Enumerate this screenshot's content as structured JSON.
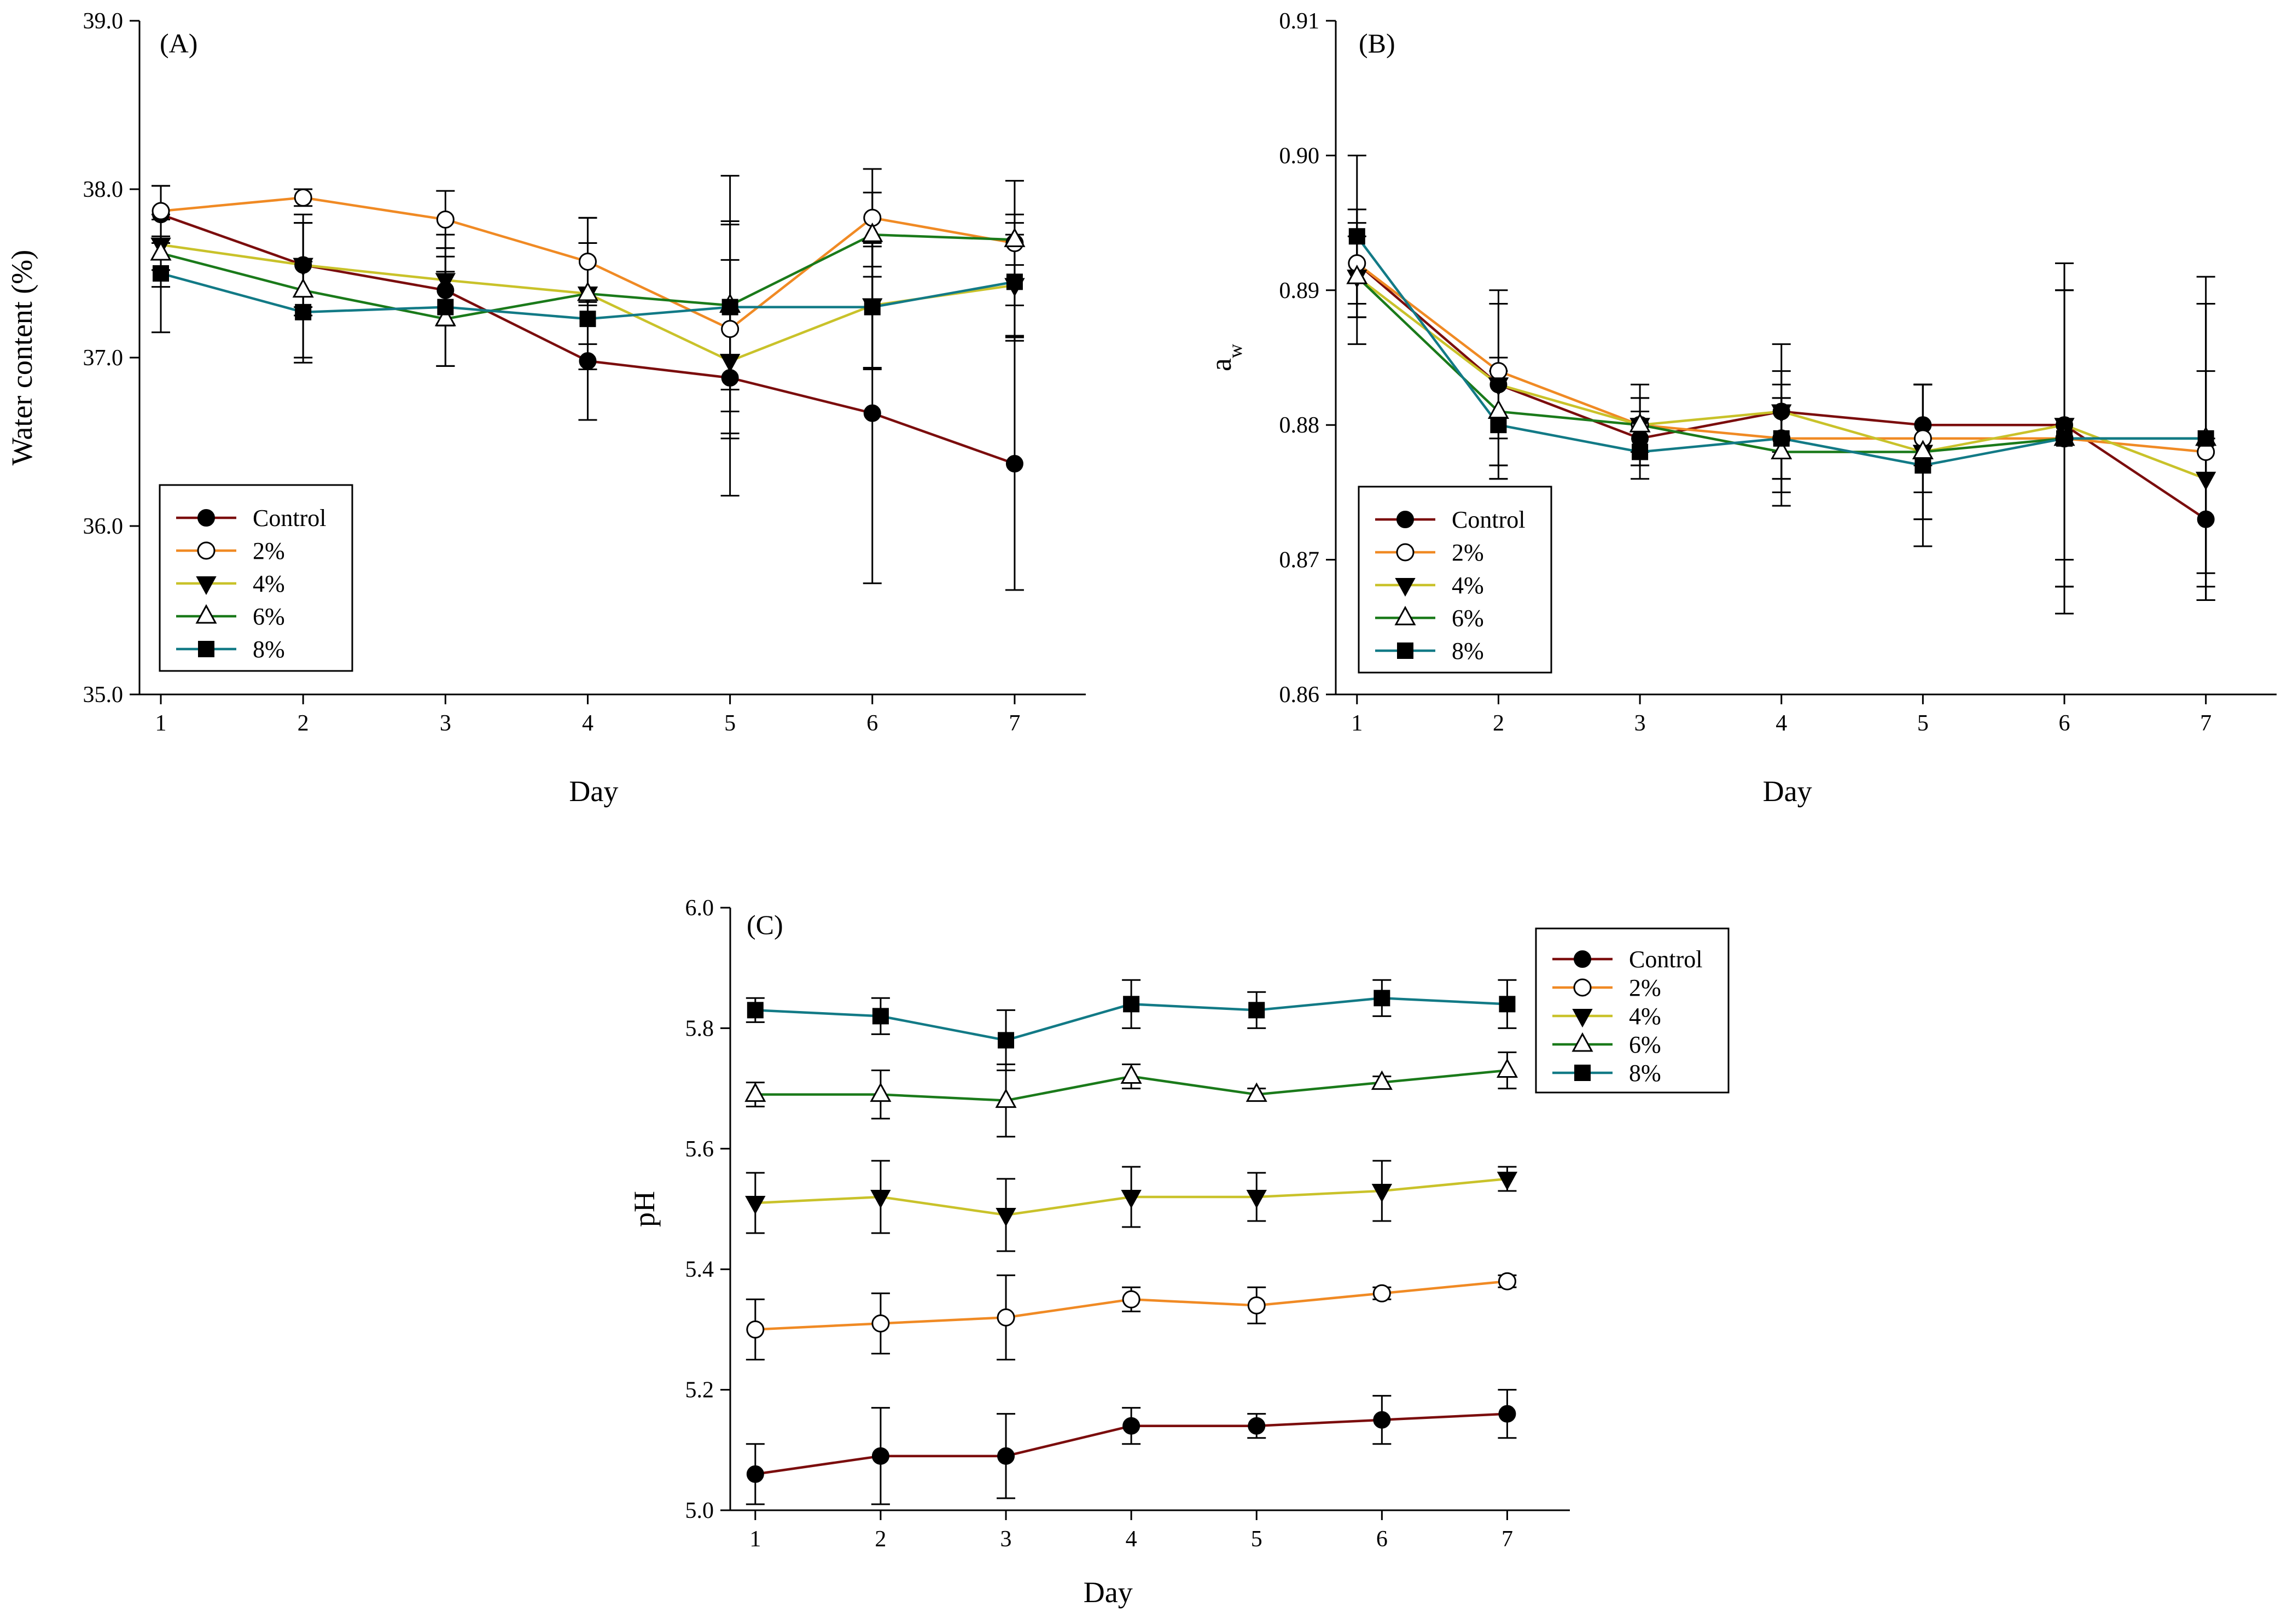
{
  "chart_data": [
    {
      "type": "line",
      "panel_label": "(A)",
      "xlabel": "Day",
      "ylabel": "Water content (%)",
      "xlim": [
        0.85,
        7.5
      ],
      "ylim": [
        35.0,
        39.0
      ],
      "x_ticks": [
        "1",
        "2",
        "3",
        "4",
        "5",
        "6",
        "7"
      ],
      "y_ticks": [
        "35.0",
        "36.0",
        "37.0",
        "38.0",
        "39.0"
      ],
      "legend_position": "bottom-left",
      "x": [
        1,
        2,
        3,
        4,
        5,
        6,
        7
      ],
      "series": [
        {
          "name": "Control",
          "color": "#7b0d0d",
          "marker": "filled-circle",
          "values": [
            37.85,
            37.55,
            37.4,
            36.98,
            36.88,
            36.67,
            36.37
          ],
          "errors": [
            0.17,
            0.25,
            0.2,
            0.35,
            0.7,
            1.01,
            0.75
          ]
        },
        {
          "name": "2%",
          "color": "#f08a24",
          "marker": "open-circle",
          "values": [
            37.87,
            37.95,
            37.82,
            37.57,
            37.17,
            37.83,
            37.68
          ],
          "errors": [
            0.15,
            0.05,
            0.17,
            0.26,
            0.62,
            0.29,
            0.37
          ]
        },
        {
          "name": "4%",
          "color": "#c9c22a",
          "marker": "filled-triangle-down",
          "values": [
            37.67,
            37.55,
            37.46,
            37.38,
            36.98,
            37.31,
            37.43
          ],
          "errors": [
            0.15,
            0.3,
            0.27,
            0.3,
            0.3,
            0.38,
            0.3
          ]
        },
        {
          "name": "6%",
          "color": "#1a7a1a",
          "marker": "open-triangle-up",
          "values": [
            37.62,
            37.4,
            37.23,
            37.38,
            37.31,
            37.73,
            37.7
          ],
          "errors": [
            0.2,
            0.4,
            0.28,
            0.45,
            0.5,
            0.25,
            0.15
          ]
        },
        {
          "name": "8%",
          "color": "#127a86",
          "marker": "filled-square",
          "values": [
            37.5,
            37.27,
            37.3,
            37.23,
            37.3,
            37.3,
            37.45
          ],
          "errors": [
            0.35,
            0.3,
            0.35,
            0.6,
            0.78,
            0.36,
            0.35
          ]
        }
      ]
    },
    {
      "type": "line",
      "panel_label": "(B)",
      "xlabel": "Day",
      "ylabel": "a",
      "ylabel_subscript": "w",
      "xlim": [
        0.85,
        7.5
      ],
      "ylim": [
        0.86,
        0.91
      ],
      "x_ticks": [
        "1",
        "2",
        "3",
        "4",
        "5",
        "6",
        "7"
      ],
      "y_ticks": [
        "0.86",
        "0.87",
        "0.88",
        "0.89",
        "0.90",
        "0.91"
      ],
      "legend_position": "bottom-left",
      "x": [
        1,
        2,
        3,
        4,
        5,
        6,
        7
      ],
      "series": [
        {
          "name": "Control",
          "color": "#7b0d0d",
          "marker": "filled-circle",
          "values": [
            0.892,
            0.883,
            0.879,
            0.881,
            0.88,
            0.88,
            0.873
          ],
          "errors": [
            0.004,
            0.006,
            0.002,
            0.003,
            0.003,
            0.012,
            0.006
          ]
        },
        {
          "name": "2%",
          "color": "#f08a24",
          "marker": "open-circle",
          "values": [
            0.892,
            0.884,
            0.88,
            0.879,
            0.879,
            0.879,
            0.878
          ],
          "errors": [
            0.003,
            0.005,
            0.002,
            0.004,
            0.004,
            0.011,
            0.011
          ]
        },
        {
          "name": "4%",
          "color": "#c9c22a",
          "marker": "filled-triangle-down",
          "values": [
            0.891,
            0.883,
            0.88,
            0.881,
            0.878,
            0.88,
            0.876
          ],
          "errors": [
            0.005,
            0.007,
            0.002,
            0.005,
            0.005,
            0.01,
            0.008
          ]
        },
        {
          "name": "6%",
          "color": "#1a7a1a",
          "marker": "open-triangle-up",
          "values": [
            0.891,
            0.881,
            0.88,
            0.878,
            0.878,
            0.879,
            0.879
          ],
          "errors": [
            0.003,
            0.004,
            0.003,
            0.004,
            0.005,
            0.011,
            0.01
          ]
        },
        {
          "name": "8%",
          "color": "#127a86",
          "marker": "filled-square",
          "values": [
            0.894,
            0.88,
            0.878,
            0.879,
            0.877,
            0.879,
            0.879
          ],
          "errors": [
            0.006,
            0.004,
            0.002,
            0.003,
            0.006,
            0.013,
            0.012
          ]
        }
      ]
    },
    {
      "type": "line",
      "panel_label": "(C)",
      "xlabel": "Day",
      "ylabel": "pH",
      "xlim": [
        0.8,
        7.5
      ],
      "ylim": [
        5.0,
        6.0
      ],
      "x_ticks": [
        "1",
        "2",
        "3",
        "4",
        "5",
        "6",
        "7"
      ],
      "y_ticks": [
        "5.0",
        "5.2",
        "5.4",
        "5.6",
        "5.8",
        "6.0"
      ],
      "legend_position": "top-right",
      "x": [
        1,
        2,
        3,
        4,
        5,
        6,
        7
      ],
      "series": [
        {
          "name": "Control",
          "color": "#7b0d0d",
          "marker": "filled-circle",
          "values": [
            5.06,
            5.09,
            5.09,
            5.14,
            5.14,
            5.15,
            5.16
          ],
          "errors": [
            0.05,
            0.08,
            0.07,
            0.03,
            0.02,
            0.04,
            0.04
          ]
        },
        {
          "name": "2%",
          "color": "#f08a24",
          "marker": "open-circle",
          "values": [
            5.3,
            5.31,
            5.32,
            5.35,
            5.34,
            5.36,
            5.38
          ],
          "errors": [
            0.05,
            0.05,
            0.07,
            0.02,
            0.03,
            0.01,
            0.01
          ]
        },
        {
          "name": "4%",
          "color": "#c9c22a",
          "marker": "filled-triangle-down",
          "values": [
            5.51,
            5.52,
            5.49,
            5.52,
            5.52,
            5.53,
            5.55
          ],
          "errors": [
            0.05,
            0.06,
            0.06,
            0.05,
            0.04,
            0.05,
            0.02
          ]
        },
        {
          "name": "6%",
          "color": "#1a7a1a",
          "marker": "open-triangle-up",
          "values": [
            5.69,
            5.69,
            5.68,
            5.72,
            5.69,
            5.71,
            5.73
          ],
          "errors": [
            0.02,
            0.04,
            0.06,
            0.02,
            0.01,
            0.01,
            0.03
          ]
        },
        {
          "name": "8%",
          "color": "#127a86",
          "marker": "filled-square",
          "values": [
            5.83,
            5.82,
            5.78,
            5.84,
            5.83,
            5.85,
            5.84
          ],
          "errors": [
            0.02,
            0.03,
            0.05,
            0.04,
            0.03,
            0.03,
            0.04
          ]
        }
      ]
    }
  ]
}
